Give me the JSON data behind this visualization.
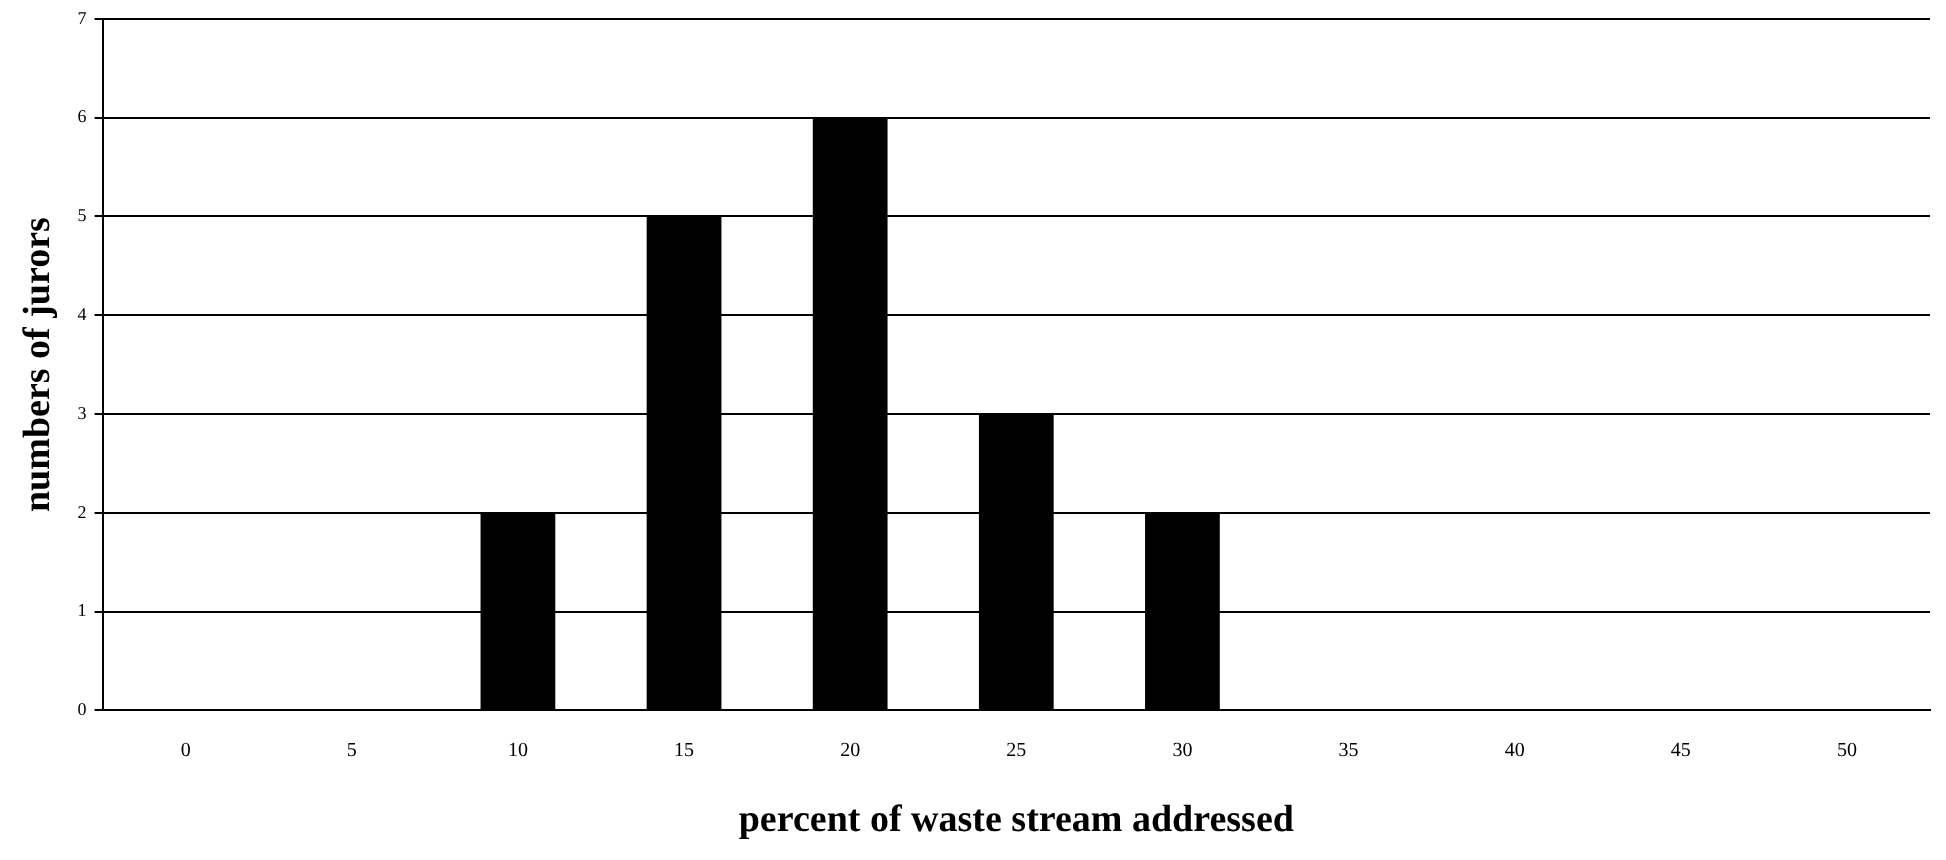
{
  "chart_data": {
    "type": "bar",
    "xlabel": "percent of waste stream addressed",
    "ylabel": "numbers of jurors",
    "categories": [
      "0",
      "5",
      "10",
      "15",
      "20",
      "25",
      "30",
      "35",
      "40",
      "45",
      "50"
    ],
    "values": [
      0,
      0,
      2,
      5,
      6,
      3,
      2,
      0,
      0,
      0,
      0
    ],
    "color": "#000000",
    "ylim": [
      0,
      7
    ],
    "yticks": [
      0,
      1,
      2,
      3,
      4,
      5,
      6,
      7
    ],
    "grid": "y",
    "legend": false
  }
}
